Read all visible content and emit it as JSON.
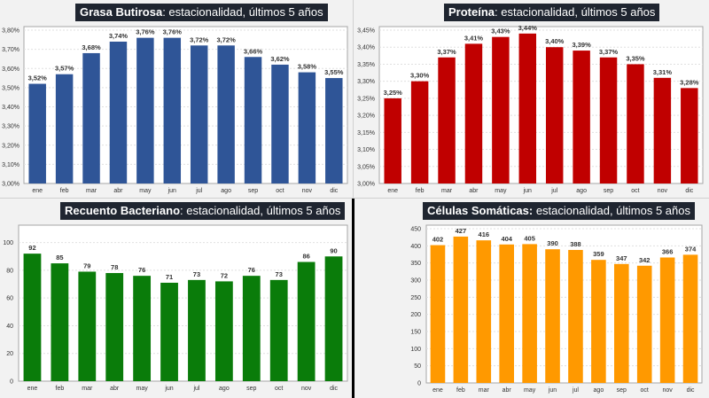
{
  "chart_data": [
    {
      "type": "bar",
      "id": "grasa",
      "title_bold": "Grasa Butirosa",
      "title_rest": ": estacionalidad, últimos 5 años",
      "categories": [
        "ene",
        "feb",
        "mar",
        "abr",
        "may",
        "jun",
        "jul",
        "ago",
        "sep",
        "oct",
        "nov",
        "dic"
      ],
      "values": [
        3.52,
        3.57,
        3.68,
        3.74,
        3.76,
        3.76,
        3.72,
        3.72,
        3.66,
        3.62,
        3.58,
        3.55
      ],
      "value_labels": [
        "3,52%",
        "3,57%",
        "3,68%",
        "3,74%",
        "3,76%",
        "3,76%",
        "3,72%",
        "3,72%",
        "3,66%",
        "3,62%",
        "3,58%",
        "3,55%"
      ],
      "yticks": [
        3.0,
        3.1,
        3.2,
        3.3,
        3.4,
        3.5,
        3.6,
        3.7,
        3.8
      ],
      "ytick_labels": [
        "3,00%",
        "3,10%",
        "3,20%",
        "3,30%",
        "3,40%",
        "3,50%",
        "3,60%",
        "3,70%",
        "3,80%"
      ],
      "ylim": [
        3.0,
        3.8
      ],
      "xlabel": "",
      "ylabel": "",
      "color": "#2f5597",
      "grid": true,
      "legend": "none"
    },
    {
      "type": "bar",
      "id": "proteina",
      "title_bold": "Proteína",
      "title_rest": ": estacionalidad, últimos 5 años",
      "categories": [
        "ene",
        "feb",
        "mar",
        "abr",
        "may",
        "jun",
        "jul",
        "ago",
        "sep",
        "oct",
        "nov",
        "dic"
      ],
      "values": [
        3.25,
        3.3,
        3.37,
        3.41,
        3.43,
        3.44,
        3.4,
        3.39,
        3.37,
        3.35,
        3.31,
        3.28
      ],
      "value_labels": [
        "3,25%",
        "3,30%",
        "3,37%",
        "3,41%",
        "3,43%",
        "3,44%",
        "3,40%",
        "3,39%",
        "3,37%",
        "3,35%",
        "3,31%",
        "3,28%"
      ],
      "yticks": [
        3.0,
        3.05,
        3.1,
        3.15,
        3.2,
        3.25,
        3.3,
        3.35,
        3.4,
        3.45
      ],
      "ytick_labels": [
        "3,00%",
        "3,05%",
        "3,10%",
        "3,15%",
        "3,20%",
        "3,25%",
        "3,30%",
        "3,35%",
        "3,40%",
        "3,45%"
      ],
      "ylim": [
        3.0,
        3.45
      ],
      "xlabel": "",
      "ylabel": "",
      "color": "#c00000",
      "grid": true,
      "legend": "none"
    },
    {
      "type": "bar",
      "id": "bacteriano",
      "title_bold": "Recuento Bacteriano",
      "title_rest": ": estacionalidad, últimos 5 años",
      "categories": [
        "ene",
        "feb",
        "mar",
        "abr",
        "may",
        "jun",
        "jul",
        "ago",
        "sep",
        "oct",
        "nov",
        "dic"
      ],
      "values": [
        92,
        85,
        79,
        78,
        76,
        71,
        73,
        72,
        76,
        73,
        86,
        90
      ],
      "value_labels": [
        "92",
        "85",
        "79",
        "78",
        "76",
        "71",
        "73",
        "72",
        "76",
        "73",
        "86",
        "90"
      ],
      "yticks": [
        0,
        20,
        40,
        60,
        80,
        100
      ],
      "ytick_labels": [
        "0",
        "20",
        "40",
        "60",
        "80",
        "100"
      ],
      "ylim": [
        0,
        110
      ],
      "xlabel": "",
      "ylabel": "",
      "color": "#0a7c0a",
      "grid": true,
      "legend": "none"
    },
    {
      "type": "bar",
      "id": "somaticas",
      "title_bold": "Células Somáticas:",
      "title_rest": " estacionalidad, últimos 5 años",
      "categories": [
        "ene",
        "feb",
        "mar",
        "abr",
        "may",
        "jun",
        "jul",
        "ago",
        "sep",
        "oct",
        "nov",
        "dic"
      ],
      "values": [
        402,
        427,
        416,
        404,
        405,
        390,
        388,
        359,
        347,
        342,
        366,
        374
      ],
      "value_labels": [
        "402",
        "427",
        "416",
        "404",
        "405",
        "390",
        "388",
        "359",
        "347",
        "342",
        "366",
        "374"
      ],
      "yticks": [
        0,
        50,
        100,
        150,
        200,
        250,
        300,
        350,
        400,
        450
      ],
      "ytick_labels": [
        "0",
        "50",
        "100",
        "150",
        "200",
        "250",
        "300",
        "350",
        "400",
        "450"
      ],
      "ylim": [
        0,
        450
      ],
      "xlabel": "",
      "ylabel": "",
      "color": "#ff9900",
      "grid": true,
      "legend": "none"
    }
  ]
}
